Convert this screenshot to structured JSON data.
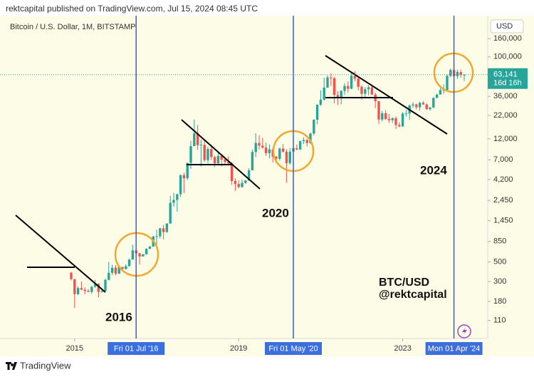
{
  "header": "rektcapital published on TradingView.com, Jul 15, 2024 08:45 UTC",
  "footer": "TradingView",
  "chart_data": {
    "type": "candlestick",
    "title": "Bitcoin / U.S. Dollar, 1M, BITSTAMP",
    "currency": "USD",
    "log_scale": true,
    "up_color": "#26a69a",
    "down_color": "#ef5350",
    "x": [
      "2014-12",
      "2015-01",
      "2015-02",
      "2015-03",
      "2015-04",
      "2015-05",
      "2015-06",
      "2015-07",
      "2015-08",
      "2015-09",
      "2015-10",
      "2015-11",
      "2015-12",
      "2016-01",
      "2016-02",
      "2016-03",
      "2016-04",
      "2016-05",
      "2016-06",
      "2016-07",
      "2016-08",
      "2016-09",
      "2016-10",
      "2016-11",
      "2016-12",
      "2017-01",
      "2017-02",
      "2017-03",
      "2017-04",
      "2017-05",
      "2017-06",
      "2017-07",
      "2017-08",
      "2017-09",
      "2017-10",
      "2017-11",
      "2017-12",
      "2018-01",
      "2018-02",
      "2018-03",
      "2018-04",
      "2018-05",
      "2018-06",
      "2018-07",
      "2018-08",
      "2018-09",
      "2018-10",
      "2018-11",
      "2018-12",
      "2019-01",
      "2019-02",
      "2019-03",
      "2019-04",
      "2019-05",
      "2019-06",
      "2019-07",
      "2019-08",
      "2019-09",
      "2019-10",
      "2019-11",
      "2019-12",
      "2020-01",
      "2020-02",
      "2020-03",
      "2020-04",
      "2020-05",
      "2020-06",
      "2020-07",
      "2020-08",
      "2020-09",
      "2020-10",
      "2020-11",
      "2020-12",
      "2021-01",
      "2021-02",
      "2021-03",
      "2021-04",
      "2021-05",
      "2021-06",
      "2021-07",
      "2021-08",
      "2021-09",
      "2021-10",
      "2021-11",
      "2021-12",
      "2022-01",
      "2022-02",
      "2022-03",
      "2022-04",
      "2022-05",
      "2022-06",
      "2022-07",
      "2022-08",
      "2022-09",
      "2022-10",
      "2022-11",
      "2022-12",
      "2023-01",
      "2023-02",
      "2023-03",
      "2023-04",
      "2023-05",
      "2023-06",
      "2023-07",
      "2023-08",
      "2023-09",
      "2023-10",
      "2023-11",
      "2023-12",
      "2024-01",
      "2024-02",
      "2024-03",
      "2024-04",
      "2024-05",
      "2024-06",
      "2024-07"
    ],
    "open": [
      378,
      320,
      217,
      254,
      244,
      236,
      230,
      263,
      284,
      230,
      236,
      314,
      377,
      430,
      369,
      437,
      416,
      448,
      531,
      673,
      624,
      575,
      608,
      701,
      742,
      964,
      970,
      1190,
      1080,
      1350,
      2300,
      2480,
      2875,
      4700,
      4340,
      6450,
      9950,
      13850,
      10200,
      10300,
      6930,
      9240,
      7500,
      6390,
      7730,
      7030,
      6630,
      6370,
      4040,
      3740,
      3460,
      3850,
      4100,
      5320,
      8570,
      10820,
      10080,
      9590,
      8290,
      9150,
      7570,
      7190,
      9350,
      8600,
      6420,
      8630,
      9450,
      9140,
      11330,
      11650,
      10780,
      13800,
      19700,
      28990,
      33110,
      45140,
      58800,
      57720,
      37330,
      35040,
      41460,
      47130,
      43820,
      61320,
      57000,
      46210,
      38480,
      43190,
      45540,
      37710,
      31790,
      19780,
      23300,
      20050,
      19430,
      20490,
      17170,
      16540,
      23130,
      23150,
      28480,
      29250,
      27220,
      30480,
      29230,
      25940,
      26970,
      34660,
      37720,
      42280,
      42580,
      61180,
      71330,
      60640,
      67490,
      62680
    ],
    "high": [
      385,
      320,
      265,
      300,
      260,
      248,
      268,
      315,
      285,
      245,
      325,
      500,
      465,
      460,
      445,
      440,
      468,
      545,
      780,
      705,
      630,
      612,
      710,
      755,
      980,
      1150,
      1210,
      1300,
      1350,
      2760,
      2980,
      2920,
      4770,
      5000,
      6470,
      11400,
      19800,
      17200,
      11800,
      11700,
      9770,
      10000,
      7780,
      8500,
      7770,
      7410,
      7680,
      6570,
      4310,
      4110,
      4200,
      4140,
      5630,
      9070,
      13880,
      13200,
      12320,
      10900,
      10370,
      9510,
      7740,
      9580,
      10500,
      9190,
      9460,
      10070,
      10390,
      11440,
      12470,
      12050,
      14100,
      19950,
      29300,
      41950,
      58350,
      61780,
      64850,
      59600,
      41300,
      42300,
      50500,
      52920,
      66990,
      69000,
      59050,
      47990,
      45800,
      48190,
      47450,
      39790,
      31980,
      24670,
      25210,
      22800,
      20990,
      21480,
      18400,
      23960,
      25250,
      29190,
      31000,
      29820,
      31390,
      31800,
      30170,
      27500,
      35200,
      38420,
      44700,
      48970,
      64000,
      73780,
      72800,
      71950,
      71980,
      63800
    ],
    "low": [
      310,
      152,
      212,
      240,
      215,
      228,
      220,
      255,
      200,
      225,
      235,
      310,
      355,
      352,
      365,
      405,
      412,
      443,
      530,
      605,
      465,
      585,
      605,
      695,
      740,
      755,
      915,
      890,
      1060,
      1330,
      2080,
      1830,
      2670,
      2970,
      4150,
      5540,
      10800,
      9030,
      5870,
      6600,
      6430,
      7000,
      5780,
      6070,
      5880,
      6100,
      6200,
      3650,
      3130,
      3350,
      3390,
      3730,
      4060,
      5330,
      7500,
      9110,
      9350,
      7710,
      7300,
      6510,
      6430,
      6850,
      8450,
      3850,
      6150,
      8110,
      8930,
      8990,
      10540,
      9880,
      10550,
      13200,
      17570,
      28130,
      32300,
      44960,
      47040,
      30000,
      28800,
      29280,
      37330,
      39600,
      43300,
      53250,
      42000,
      32950,
      34320,
      37160,
      37580,
      26580,
      17570,
      18780,
      19550,
      18150,
      18180,
      15480,
      16250,
      16500,
      21350,
      19550,
      26950,
      25810,
      24750,
      28860,
      25170,
      24900,
      26550,
      34100,
      37650,
      38550,
      41880,
      59000,
      59190,
      56550,
      58400,
      53500
    ],
    "close": [
      320,
      217,
      254,
      244,
      236,
      230,
      263,
      284,
      230,
      236,
      314,
      377,
      430,
      369,
      437,
      416,
      448,
      531,
      673,
      624,
      575,
      608,
      701,
      742,
      964,
      970,
      1190,
      1080,
      1350,
      2300,
      2480,
      2875,
      4700,
      4340,
      6450,
      9950,
      13850,
      10200,
      10300,
      6930,
      9240,
      7500,
      6390,
      7730,
      7030,
      6630,
      6370,
      4040,
      3740,
      3460,
      3850,
      4100,
      5320,
      8570,
      10820,
      10080,
      9590,
      8290,
      9150,
      7570,
      7190,
      9350,
      8600,
      6420,
      8630,
      9450,
      9140,
      11330,
      11650,
      10780,
      13800,
      19700,
      28990,
      33110,
      45140,
      58800,
      57720,
      37330,
      35040,
      41460,
      47130,
      43820,
      61320,
      57000,
      46210,
      38480,
      43190,
      45540,
      37710,
      31790,
      19780,
      23300,
      20050,
      19430,
      20490,
      17170,
      16540,
      23130,
      23150,
      28480,
      29250,
      27220,
      30480,
      29230,
      25940,
      26970,
      34660,
      37720,
      42280,
      42580,
      61180,
      71330,
      60640,
      67490,
      62680,
      63141
    ],
    "ylim": [
      69,
      250000
    ],
    "yticks": [
      110,
      180,
      300,
      500,
      850,
      {
        "value": 1450,
        "label": "1,450"
      },
      {
        "value": 2450,
        "label": "2,450"
      },
      {
        "value": 4200,
        "label": "4,200"
      },
      {
        "value": 7000,
        "label": "7,000"
      },
      {
        "value": 12000,
        "label": "12,000"
      },
      {
        "value": 22000,
        "label": "22,000"
      },
      {
        "value": 36000,
        "label": "36,000"
      },
      {
        "value": 100000,
        "label": "100,000"
      },
      {
        "value": 160000,
        "label": "160,000"
      }
    ],
    "xticks": [
      {
        "value": "2015-01",
        "label": "2015"
      },
      {
        "value": "2019-01",
        "label": "2019"
      },
      {
        "value": "2023-01",
        "label": "2023"
      }
    ],
    "markers": [
      {
        "x": "2016-07",
        "label": "Fri 01 Jul '16"
      },
      {
        "x": "2020-05",
        "label": "Fri 01 May '20"
      },
      {
        "x": "2024-04",
        "label": "Mon 01 Apr '24"
      }
    ],
    "last_price": {
      "value": 63141,
      "label": "63,141"
    },
    "countdown": "16d 16h",
    "annotations": [
      "2016",
      "2020",
      "2024",
      "BTC/USD",
      "@rektcapital"
    ]
  }
}
